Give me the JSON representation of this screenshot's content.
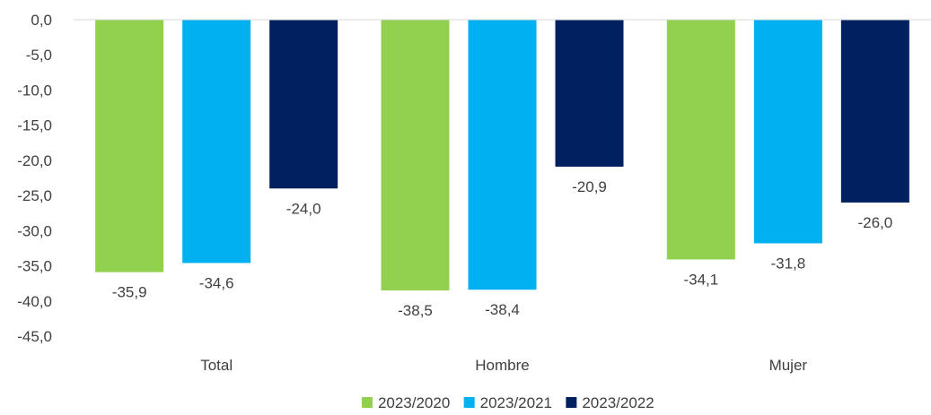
{
  "chart_data": {
    "type": "bar",
    "categories": [
      "Total",
      "Hombre",
      "Mujer"
    ],
    "series": [
      {
        "name": "2023/2020",
        "color": "#92d050",
        "values": [
          -35.9,
          -38.5,
          -34.1
        ]
      },
      {
        "name": "2023/2021",
        "color": "#00b0f0",
        "values": [
          -34.6,
          -38.4,
          -31.8
        ]
      },
      {
        "name": "2023/2022",
        "color": "#002060",
        "values": [
          -24.0,
          -20.9,
          -26.0
        ]
      }
    ],
    "ylim": [
      -45,
      0
    ],
    "yticks": [
      0,
      -5,
      -10,
      -15,
      -20,
      -25,
      -30,
      -35,
      -40,
      -45
    ],
    "ytick_labels": [
      "0,0",
      "-5,0",
      "-10,0",
      "-15,0",
      "-20,0",
      "-25,0",
      "-30,0",
      "-35,0",
      "-40,0",
      "-45,0"
    ],
    "data_labels": [
      [
        "-35,9",
        "-38,5",
        "-34,1"
      ],
      [
        "-34,6",
        "-38,4",
        "-31,8"
      ],
      [
        "-24,0",
        "-20,9",
        "-26,0"
      ]
    ],
    "grid": false,
    "legend": "bottom"
  }
}
